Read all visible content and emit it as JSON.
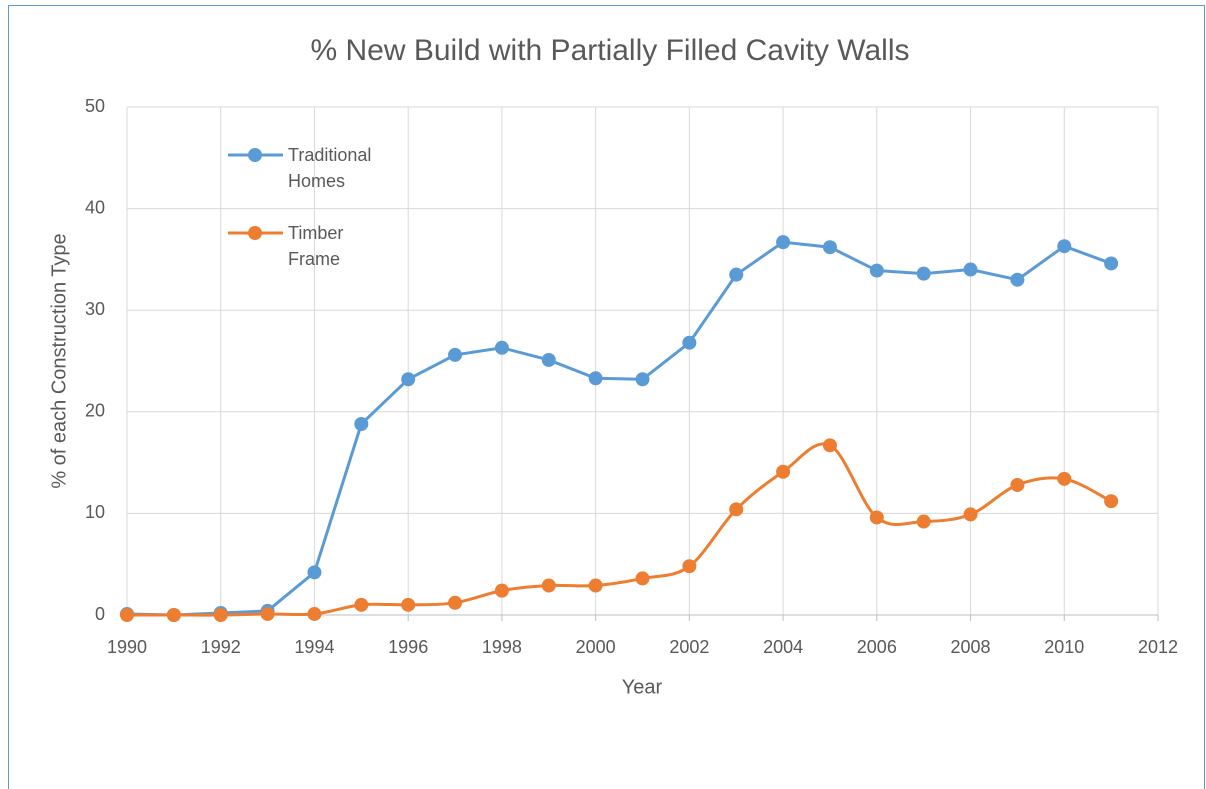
{
  "chart_data": {
    "type": "line",
    "title": "% New Build with Partially Filled Cavity Walls",
    "x_label": "Year",
    "y_label": "% of each Construction Type",
    "x": [
      1990,
      1991,
      1992,
      1993,
      1994,
      1995,
      1996,
      1997,
      1998,
      1999,
      2000,
      2001,
      2002,
      2003,
      2004,
      2005,
      2006,
      2007,
      2008,
      2009,
      2010,
      2011
    ],
    "series": [
      {
        "name": "Traditional Homes",
        "color": "#5b9bd5",
        "smooth": false,
        "values": [
          0.1,
          0,
          0.2,
          0.4,
          4.2,
          18.8,
          23.2,
          25.6,
          26.3,
          25.1,
          23.3,
          23.2,
          26.8,
          33.5,
          36.7,
          36.2,
          33.9,
          33.6,
          34.0,
          33.0,
          36.3,
          34.6
        ]
      },
      {
        "name": "Timber Frame",
        "color": "#ed7d31",
        "smooth": true,
        "values": [
          0,
          0,
          0,
          0.1,
          0.1,
          1.0,
          1.0,
          1.2,
          2.4,
          2.9,
          2.9,
          3.6,
          4.8,
          10.4,
          14.1,
          16.7,
          9.6,
          9.2,
          9.9,
          12.8,
          13.4,
          11.2
        ]
      }
    ],
    "xlim": [
      1990,
      2012
    ],
    "xticks": [
      1990,
      1992,
      1994,
      1996,
      1998,
      2000,
      2002,
      2004,
      2006,
      2008,
      2010,
      2012
    ],
    "ylim": [
      0,
      50
    ],
    "yticks": [
      0,
      10,
      20,
      30,
      40,
      50
    ],
    "grid": true,
    "legend": "upper left"
  }
}
